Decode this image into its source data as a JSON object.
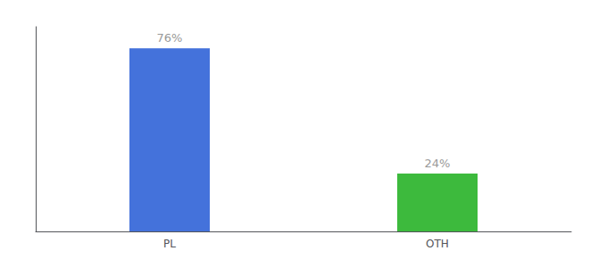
{
  "chart_data": {
    "type": "bar",
    "categories": [
      "PL",
      "OTH"
    ],
    "values": [
      76,
      24
    ],
    "colors": [
      "#4472db",
      "#3dba3d"
    ],
    "value_labels": [
      "76%",
      "24%"
    ],
    "data_labels": true,
    "ylim": [
      0,
      85
    ],
    "tick_labels": "x",
    "grid": false
  }
}
